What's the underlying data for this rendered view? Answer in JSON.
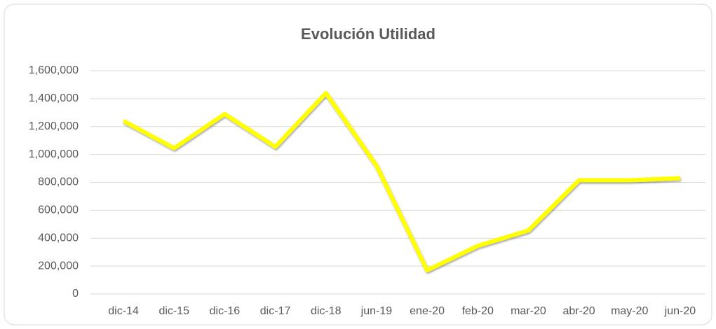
{
  "chart_data": {
    "type": "line",
    "title": "Evolución Utilidad",
    "categories": [
      "dic-14",
      "dic-15",
      "dic-16",
      "dic-17",
      "dic-18",
      "jun-19",
      "ene-20",
      "feb-20",
      "mar-20",
      "abr-20",
      "may-20",
      "jun-20"
    ],
    "series": [
      {
        "name": "Utilidad",
        "color": "#ffff00",
        "values": [
          1240000,
          1045000,
          1290000,
          1055000,
          1440000,
          920000,
          170000,
          345000,
          455000,
          815000,
          815000,
          830000
        ]
      }
    ],
    "ylim": [
      0,
      1600000
    ],
    "yticks": [
      0,
      {
        "value": 200000,
        "label": "200,000"
      },
      {
        "value": 400000,
        "label": "400,000"
      },
      {
        "value": 600000,
        "label": "600,000"
      },
      {
        "value": 800000,
        "label": "800,000"
      },
      {
        "value": 1000000,
        "label": "1,000,000"
      },
      {
        "value": 1200000,
        "label": "1,200,000"
      },
      {
        "value": 1400000,
        "label": "1,400,000"
      },
      {
        "value": 1600000,
        "label": "1,600,000"
      }
    ],
    "grid": true
  }
}
